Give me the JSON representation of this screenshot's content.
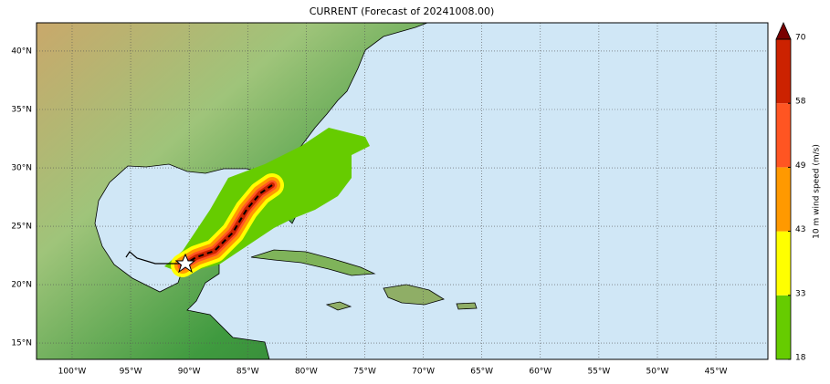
{
  "map_data": {
    "title": "CURRENT (Forecast of 20241008.00)",
    "xlim": [
      -103.04,
      -40.56
    ],
    "ylim": [
      13.6,
      42.42
    ],
    "lon_ticks": [
      {
        "value": -100,
        "label": "100°W"
      },
      {
        "value": -95,
        "label": "95°W"
      },
      {
        "value": -90,
        "label": "90°W"
      },
      {
        "value": -85,
        "label": "85°W"
      },
      {
        "value": -80,
        "label": "80°W"
      },
      {
        "value": -75,
        "label": "75°W"
      },
      {
        "value": -70,
        "label": "70°W"
      },
      {
        "value": -65,
        "label": "65°W"
      },
      {
        "value": -60,
        "label": "60°W"
      },
      {
        "value": -55,
        "label": "55°W"
      },
      {
        "value": -50,
        "label": "50°W"
      },
      {
        "value": -45,
        "label": "45°W"
      }
    ],
    "lat_ticks": [
      {
        "value": 15,
        "label": "15°N"
      },
      {
        "value": 20,
        "label": "20°N"
      },
      {
        "value": 25,
        "label": "25°N"
      },
      {
        "value": 30,
        "label": "30°N"
      },
      {
        "value": 35,
        "label": "35°N"
      },
      {
        "value": 40,
        "label": "40°N"
      }
    ],
    "colorbar": {
      "label": "10 m wind speed (m/s)",
      "ticks": [
        18,
        33,
        43,
        49,
        58,
        70
      ],
      "colors": [
        "#66cc00",
        "#ffff00",
        "#ff9900",
        "#ff5522",
        "#cc2200"
      ],
      "extend_color": "#7a0000"
    }
  }
}
